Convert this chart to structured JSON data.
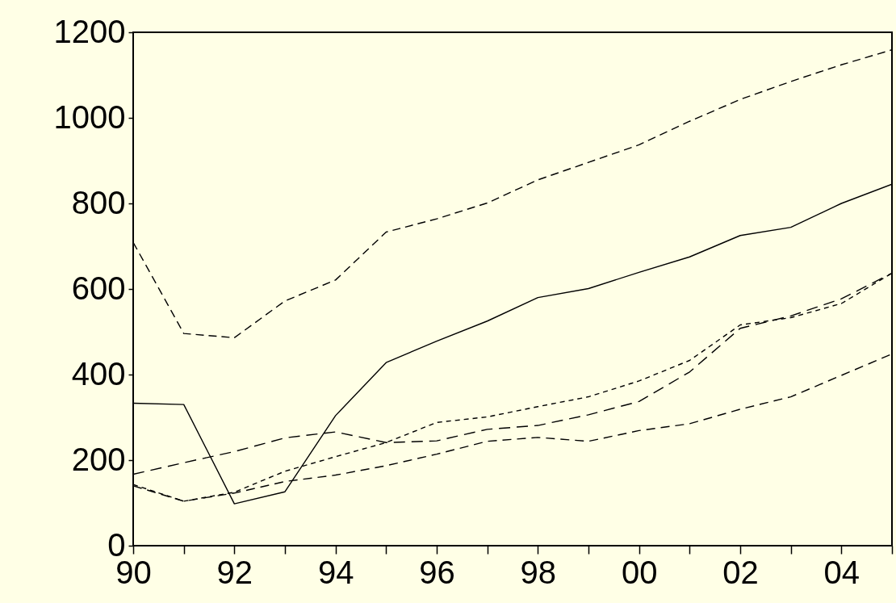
{
  "chart_data": {
    "type": "line",
    "x": [
      1990,
      1991,
      1992,
      1993,
      1994,
      1995,
      1996,
      1997,
      1998,
      1999,
      2000,
      2001,
      2002,
      2003,
      2004,
      2005
    ],
    "series": [
      {
        "color": "#000000",
        "line_style": "dashed",
        "values": [
          709,
          496,
          486,
          572,
          621,
          733,
          764,
          801,
          855,
          896,
          937,
          992,
          1043,
          1085,
          1124,
          1159
        ]
      },
      {
        "color": "#000000",
        "line_style": "solid",
        "values": [
          333,
          330,
          98,
          126,
          304,
          428,
          478,
          525,
          580,
          601,
          639,
          675,
          725,
          744,
          800,
          845
        ]
      },
      {
        "color": "#000000",
        "line_style": "dashed",
        "values": [
          167,
          194,
          220,
          252,
          266,
          241,
          245,
          272,
          281,
          306,
          337,
          406,
          508,
          537,
          577,
          637
        ]
      },
      {
        "color": "#000000",
        "line_style": "dashed",
        "values": [
          143,
          104,
          125,
          174,
          208,
          241,
          288,
          301,
          325,
          348,
          385,
          433,
          516,
          533,
          566,
          637
        ]
      },
      {
        "color": "#000000",
        "line_style": "dashed",
        "values": [
          140,
          104,
          123,
          150,
          165,
          187,
          214,
          244,
          253,
          244,
          269,
          285,
          319,
          348,
          398,
          448
        ]
      }
    ],
    "xlim": [
      1990,
      2005
    ],
    "xticks": [
      {
        "value": 1990,
        "label": "90"
      },
      {
        "value": 1991,
        "label": null
      },
      {
        "value": 1992,
        "label": "92"
      },
      {
        "value": 1993,
        "label": null
      },
      {
        "value": 1994,
        "label": "94"
      },
      {
        "value": 1995,
        "label": null
      },
      {
        "value": 1996,
        "label": "96"
      },
      {
        "value": 1997,
        "label": null
      },
      {
        "value": 1998,
        "label": "98"
      },
      {
        "value": 1999,
        "label": null
      },
      {
        "value": 2000,
        "label": "00"
      },
      {
        "value": 2001,
        "label": null
      },
      {
        "value": 2002,
        "label": "02"
      },
      {
        "value": 2003,
        "label": null
      },
      {
        "value": 2004,
        "label": "04"
      },
      {
        "value": 2005,
        "label": null
      }
    ],
    "ylim": [
      0,
      1200
    ],
    "yticks": [
      0,
      200,
      400,
      600,
      800,
      1000,
      1200
    ],
    "grid": false,
    "marker": "none"
  }
}
